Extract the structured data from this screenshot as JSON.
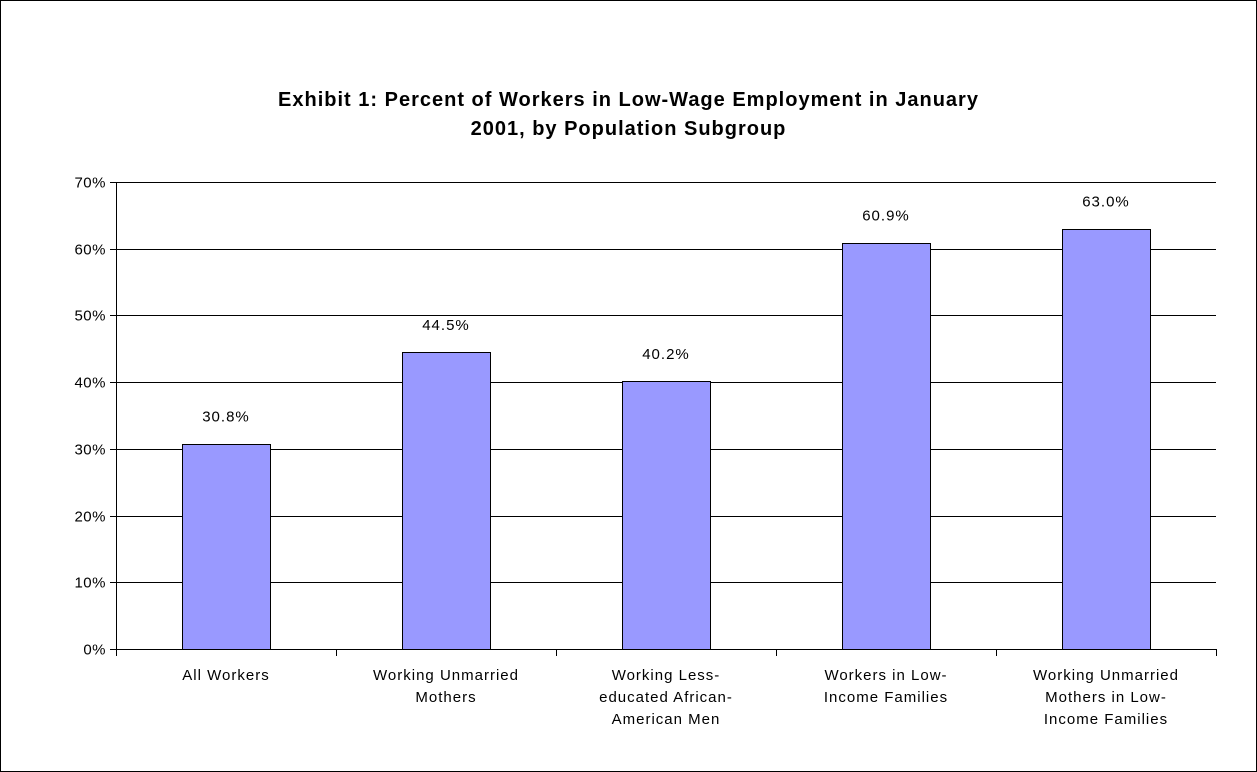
{
  "chart_data": {
    "type": "bar",
    "title_lines": [
      "Exhibit 1: Percent of Workers in Low-Wage Employment in January",
      "2001, by Population Subgroup"
    ],
    "categories": [
      [
        "All Workers"
      ],
      [
        "Working Unmarried",
        "Mothers"
      ],
      [
        "Working Less-",
        "educated African-",
        "American Men"
      ],
      [
        "Workers in Low-",
        "Income Families"
      ],
      [
        "Working Unmarried",
        "Mothers in Low-",
        "Income Families"
      ]
    ],
    "values": [
      30.8,
      44.5,
      40.2,
      60.9,
      63.0
    ],
    "data_labels": [
      "30.8%",
      "44.5%",
      "40.2%",
      "60.9%",
      "63.0%"
    ],
    "y_ticks": [
      0,
      10,
      20,
      30,
      40,
      50,
      60,
      70
    ],
    "y_tick_labels": [
      "0%",
      "10%",
      "20%",
      "30%",
      "40%",
      "50%",
      "60%",
      "70%"
    ],
    "ylim": [
      0,
      70
    ],
    "xlabel": "",
    "ylabel": "",
    "grid": true,
    "legend": "none",
    "colors": {
      "bar_fill": "#9999ff",
      "bar_stroke": "#000000",
      "gridline": "#000000",
      "axis": "#000000"
    }
  }
}
